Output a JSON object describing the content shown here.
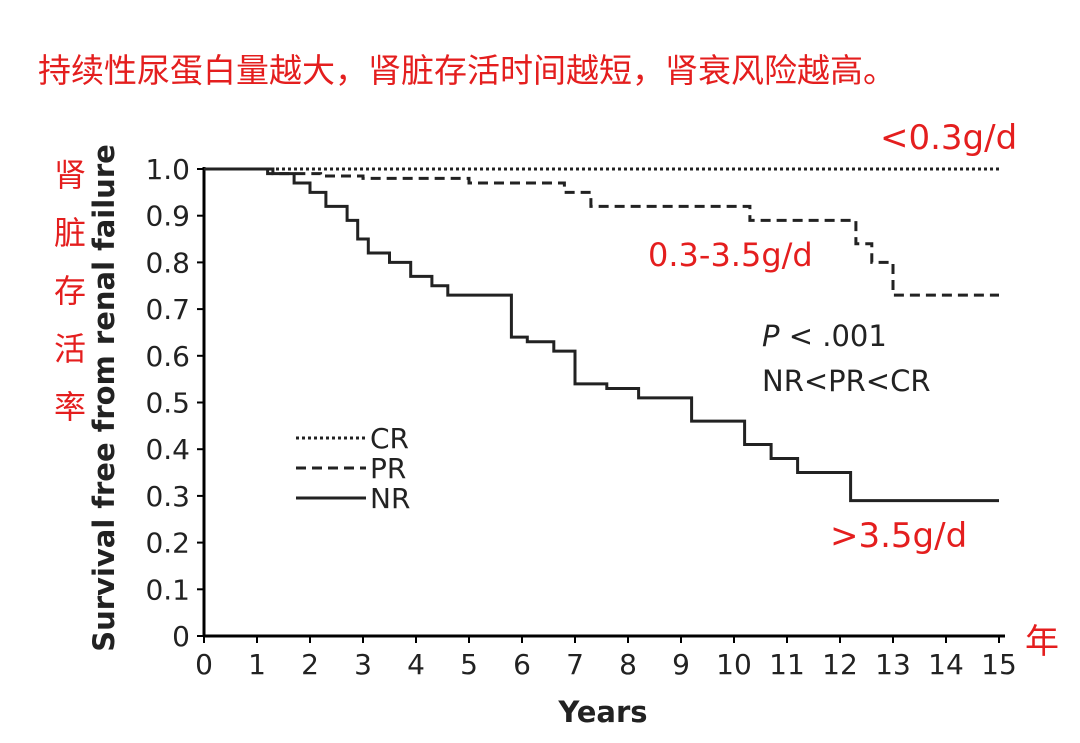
{
  "headline": "持续性尿蛋白量越大，肾脏存活时间越短，肾衰风险越高。",
  "side_label_chars": [
    "肾",
    "脏",
    "存",
    "活",
    "率"
  ],
  "x_unit_label": "年",
  "annotations": {
    "cr": "<0.3g/d",
    "pr": "0.3-3.5g/d",
    "nr": ">3.5g/d"
  },
  "stats": {
    "p_symbol": "P",
    "p_text": " < .001",
    "order": "NR<PR<CR"
  },
  "colors": {
    "annotation": "#e41e1e",
    "axis": "#000000",
    "series": "#222222"
  },
  "chart_data": {
    "type": "line",
    "xlabel": "Years",
    "ylabel": "Survival free from renal failure",
    "xlim": [
      0,
      15
    ],
    "ylim": [
      0,
      1.0
    ],
    "xticks": [
      "0",
      "1",
      "2",
      "3",
      "4",
      "5",
      "6",
      "7",
      "8",
      "9",
      "10",
      "11",
      "12",
      "13",
      "14",
      "15"
    ],
    "yticks": [
      "0",
      "0.1",
      "0.2",
      "0.3",
      "0.4",
      "0.5",
      "0.6",
      "0.7",
      "0.8",
      "0.9",
      "1.0"
    ],
    "legend_position": "lower-left",
    "step": true,
    "series": [
      {
        "name": "CR",
        "style": "dotted",
        "x": [
          0,
          15
        ],
        "y": [
          1.0,
          1.0
        ]
      },
      {
        "name": "PR",
        "style": "dashed",
        "x": [
          0,
          1.2,
          2.2,
          3.0,
          5.0,
          6.8,
          7.3,
          10.3,
          12.3,
          12.6,
          13.0,
          15
        ],
        "y": [
          1.0,
          0.99,
          0.985,
          0.98,
          0.97,
          0.95,
          0.92,
          0.89,
          0.84,
          0.8,
          0.73,
          0.73
        ]
      },
      {
        "name": "NR",
        "style": "solid",
        "x": [
          0,
          1.3,
          1.7,
          2.0,
          2.3,
          2.7,
          2.9,
          3.1,
          3.5,
          3.9,
          4.3,
          4.6,
          5.8,
          6.1,
          6.6,
          7.0,
          7.6,
          8.2,
          9.2,
          10.2,
          10.7,
          11.2,
          12.2,
          15
        ],
        "y": [
          1.0,
          0.99,
          0.97,
          0.95,
          0.92,
          0.89,
          0.85,
          0.82,
          0.8,
          0.77,
          0.75,
          0.73,
          0.64,
          0.63,
          0.61,
          0.54,
          0.53,
          0.51,
          0.46,
          0.41,
          0.38,
          0.35,
          0.29,
          0.29
        ]
      }
    ]
  }
}
